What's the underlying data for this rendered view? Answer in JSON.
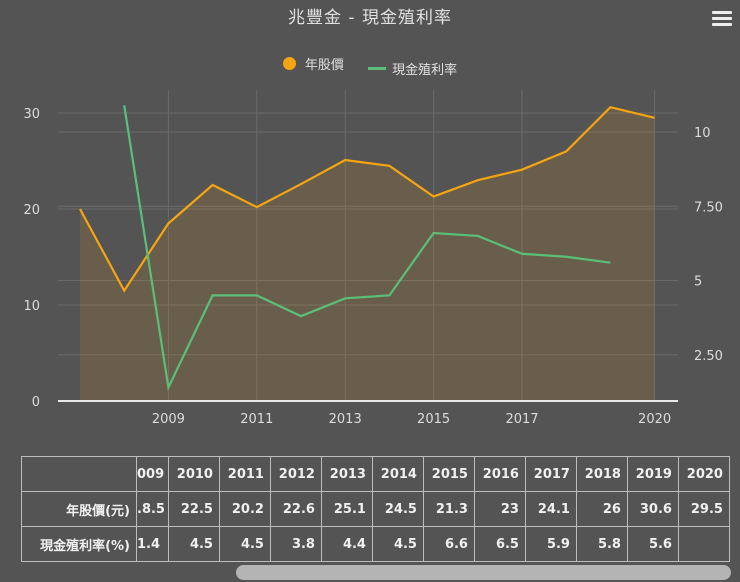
{
  "title": "兆豐金 - 現金殖利率",
  "menu_icon": "hamburger-menu-icon",
  "legend": [
    {
      "label": "年股價",
      "color": "#f5a511",
      "symbol": "circle"
    },
    {
      "label": "現金殖利率",
      "color": "#5bbf7a",
      "symbol": "line"
    }
  ],
  "chart_data": {
    "type": "line",
    "title": "兆豐金 - 現金殖利率",
    "x": [
      2007,
      2008,
      2009,
      2010,
      2011,
      2012,
      2013,
      2014,
      2015,
      2016,
      2017,
      2018,
      2019,
      2020
    ],
    "x_tick_labels": [
      "2009",
      "2011",
      "2013",
      "2015",
      "2017",
      "2020"
    ],
    "series": [
      {
        "name": "年股價",
        "axis": "left",
        "type": "area",
        "color": "#f5a511",
        "values": [
          20,
          11.5,
          18.5,
          22.5,
          20.2,
          22.6,
          25.1,
          24.5,
          21.3,
          23,
          24.1,
          26,
          30.6,
          29.5
        ]
      },
      {
        "name": "現金殖利率",
        "axis": "right",
        "type": "line",
        "color": "#5bbf7a",
        "values": [
          null,
          10.9,
          1.4,
          4.5,
          4.5,
          3.8,
          4.4,
          4.5,
          6.6,
          6.5,
          5.9,
          5.8,
          5.6,
          null
        ]
      }
    ],
    "left_axis": {
      "ticks": [
        "0",
        "10",
        "20",
        "30"
      ],
      "ylim": [
        0,
        30
      ]
    },
    "right_axis": {
      "ticks": [
        "2.50",
        "5",
        "7.50",
        "10"
      ]
    },
    "grid": true,
    "legend_position": "top"
  },
  "table": {
    "headers": [
      "",
      "009",
      "2010",
      "2011",
      "2012",
      "2013",
      "2014",
      "2015",
      "2016",
      "2017",
      "2018",
      "2019",
      "2020"
    ],
    "rows": [
      {
        "label": "年股價(元)",
        "cells": [
          ".8.5",
          "22.5",
          "20.2",
          "22.6",
          "25.1",
          "24.5",
          "21.3",
          "23",
          "24.1",
          "26",
          "30.6",
          "29.5"
        ]
      },
      {
        "label": "現金殖利率(%)",
        "cells": [
          "1.4",
          "4.5",
          "4.5",
          "3.8",
          "4.4",
          "4.5",
          "6.6",
          "6.5",
          "5.9",
          "5.8",
          "5.6",
          ""
        ]
      }
    ]
  }
}
